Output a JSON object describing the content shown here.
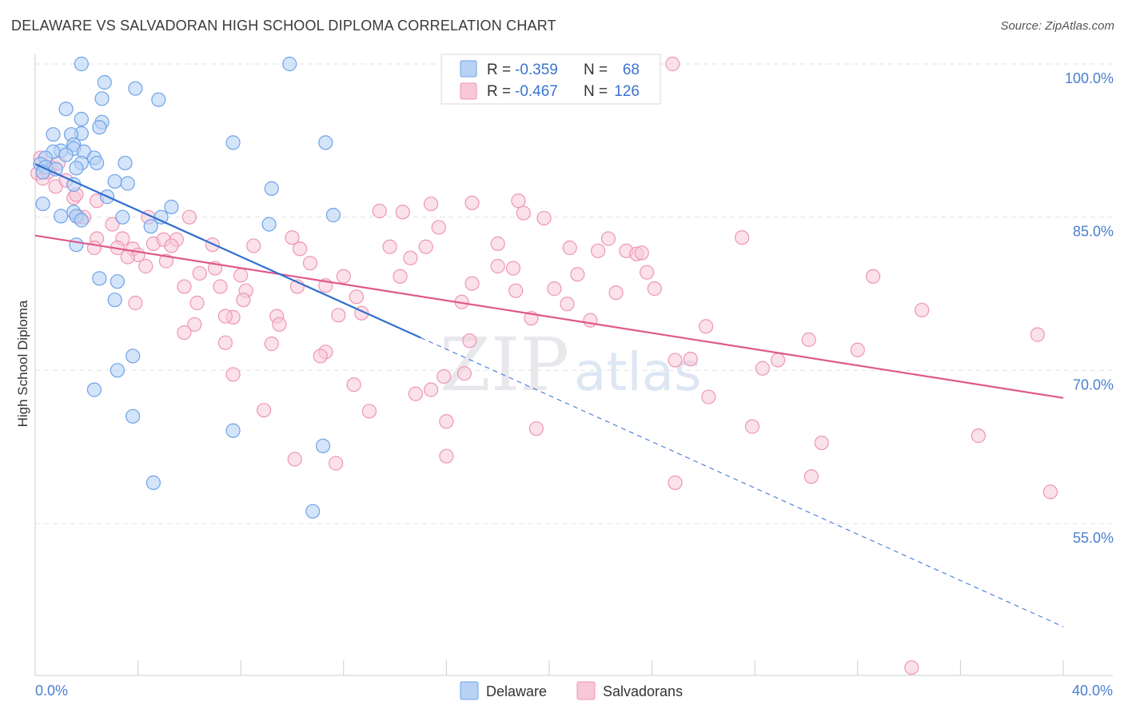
{
  "title": "DELAWARE VS SALVADORAN HIGH SCHOOL DIPLOMA CORRELATION CHART",
  "source": "Source: ZipAtlas.com",
  "watermark": {
    "zip": "ZIP",
    "atlas": "atlas"
  },
  "colors": {
    "delaware": "#6fa3e8",
    "delaware_fill": "#b8d2f5",
    "delaware_line": "#2f6fcf",
    "salvadoran": "#ee96b4",
    "salvadoran_fill": "#f8c8d8",
    "salvadoran_line": "#e0588b",
    "tick_label": "#4a7fcf",
    "grid": "#e2e2e2"
  },
  "legend": {
    "rows": [
      {
        "r_label": "R =",
        "r_value": "-0.359",
        "n_label": "N =",
        "n_value": "68"
      },
      {
        "r_label": "R =",
        "r_value": "-0.467",
        "n_label": "N =",
        "n_value": "126"
      }
    ]
  },
  "bottom_legend": [
    "Delaware",
    "Salvadorans"
  ],
  "chart_data": {
    "type": "scatter",
    "title": "DELAWARE VS SALVADORAN HIGH SCHOOL DIPLOMA CORRELATION CHART",
    "xlabel": "",
    "ylabel": "High School Diploma",
    "xlim": [
      0,
      40
    ],
    "ylim": [
      40,
      102
    ],
    "x_tick_labels": [
      "0.0%",
      "40.0%"
    ],
    "y_tick_values": [
      100,
      85,
      70,
      55
    ],
    "y_tick_labels": [
      "100.0%",
      "85.0%",
      "70.0%",
      "55.0%"
    ],
    "grid": true,
    "series": [
      {
        "name": "Delaware",
        "r": -0.359,
        "n": 68,
        "trend": {
          "x": [
            0,
            15
          ],
          "y": [
            90.2,
            73.2
          ],
          "dashed_extension_x": [
            15,
            40
          ],
          "dashed_extension_y": [
            73.2,
            44.9
          ]
        },
        "points": [
          [
            1.8,
            100
          ],
          [
            9.9,
            100
          ],
          [
            2.7,
            98.2
          ],
          [
            3.9,
            97.6
          ],
          [
            4.8,
            96.5
          ],
          [
            2.6,
            96.6
          ],
          [
            1.2,
            95.6
          ],
          [
            1.8,
            94.6
          ],
          [
            2.6,
            94.3
          ],
          [
            2.5,
            93.8
          ],
          [
            1.8,
            93.2
          ],
          [
            1.4,
            93.1
          ],
          [
            0.7,
            93.1
          ],
          [
            7.7,
            92.3
          ],
          [
            11.3,
            92.3
          ],
          [
            1.5,
            92.1
          ],
          [
            1.5,
            91.7
          ],
          [
            1.0,
            91.5
          ],
          [
            1.9,
            91.4
          ],
          [
            0.7,
            91.4
          ],
          [
            1.2,
            91.1
          ],
          [
            0.4,
            90.8
          ],
          [
            2.3,
            90.8
          ],
          [
            1.8,
            90.3
          ],
          [
            3.5,
            90.3
          ],
          [
            0.2,
            90.2
          ],
          [
            0.4,
            89.9
          ],
          [
            0.8,
            89.7
          ],
          [
            1.6,
            89.8
          ],
          [
            2.4,
            90.3
          ],
          [
            0.3,
            89.4
          ],
          [
            3.1,
            88.5
          ],
          [
            3.6,
            88.3
          ],
          [
            1.5,
            88.2
          ],
          [
            9.2,
            87.8
          ],
          [
            2.8,
            87.0
          ],
          [
            0.3,
            86.3
          ],
          [
            1.5,
            85.5
          ],
          [
            1.6,
            85.1
          ],
          [
            1.0,
            85.1
          ],
          [
            5.3,
            86.0
          ],
          [
            3.4,
            85.0
          ],
          [
            4.9,
            85.0
          ],
          [
            11.6,
            85.2
          ],
          [
            1.8,
            84.7
          ],
          [
            4.5,
            84.1
          ],
          [
            9.1,
            84.3
          ],
          [
            1.6,
            82.3
          ],
          [
            2.5,
            79.0
          ],
          [
            3.2,
            78.7
          ],
          [
            3.1,
            76.9
          ],
          [
            3.8,
            71.4
          ],
          [
            3.2,
            70.0
          ],
          [
            2.3,
            68.1
          ],
          [
            3.8,
            65.5
          ],
          [
            7.7,
            64.1
          ],
          [
            11.2,
            62.6
          ],
          [
            4.6,
            59.0
          ],
          [
            10.8,
            56.2
          ]
        ]
      },
      {
        "name": "Salvadorans",
        "r": -0.467,
        "n": 126,
        "trend": {
          "x": [
            0,
            40
          ],
          "y": [
            83.2,
            67.3
          ]
        },
        "points": [
          [
            24.8,
            100
          ],
          [
            0.2,
            90.8
          ],
          [
            0.6,
            89.9
          ],
          [
            0.1,
            89.3
          ],
          [
            0.8,
            88.0
          ],
          [
            1.5,
            86.9
          ],
          [
            1.6,
            87.2
          ],
          [
            2.4,
            86.6
          ],
          [
            1.7,
            85.0
          ],
          [
            1.9,
            85.0
          ],
          [
            4.4,
            85.0
          ],
          [
            6.0,
            85.0
          ],
          [
            14.3,
            85.5
          ],
          [
            13.4,
            85.6
          ],
          [
            15.4,
            86.3
          ],
          [
            18.8,
            86.6
          ],
          [
            17.0,
            86.4
          ],
          [
            19.0,
            85.4
          ],
          [
            19.8,
            84.9
          ],
          [
            15.7,
            84.0
          ],
          [
            3.0,
            84.3
          ],
          [
            2.4,
            82.9
          ],
          [
            3.4,
            82.9
          ],
          [
            4.6,
            82.4
          ],
          [
            5.0,
            82.8
          ],
          [
            5.5,
            82.8
          ],
          [
            6.9,
            82.3
          ],
          [
            5.3,
            82.2
          ],
          [
            3.2,
            82.0
          ],
          [
            2.3,
            82.0
          ],
          [
            3.8,
            81.9
          ],
          [
            4.0,
            81.3
          ],
          [
            3.6,
            81.1
          ],
          [
            8.5,
            82.2
          ],
          [
            10.3,
            81.9
          ],
          [
            10.0,
            83.0
          ],
          [
            13.8,
            82.1
          ],
          [
            14.6,
            81.0
          ],
          [
            15.2,
            82.1
          ],
          [
            18.0,
            82.4
          ],
          [
            20.8,
            82.0
          ],
          [
            21.9,
            81.7
          ],
          [
            22.3,
            82.9
          ],
          [
            23.0,
            81.7
          ],
          [
            23.4,
            81.4
          ],
          [
            23.6,
            81.5
          ],
          [
            27.5,
            83.0
          ],
          [
            5.1,
            80.7
          ],
          [
            4.3,
            80.2
          ],
          [
            6.4,
            79.5
          ],
          [
            7.0,
            80.0
          ],
          [
            8.0,
            79.3
          ],
          [
            10.7,
            80.5
          ],
          [
            12.0,
            79.2
          ],
          [
            14.2,
            79.2
          ],
          [
            18.0,
            80.2
          ],
          [
            18.6,
            80.0
          ],
          [
            21.1,
            79.4
          ],
          [
            23.8,
            79.6
          ],
          [
            32.6,
            79.2
          ],
          [
            5.8,
            78.2
          ],
          [
            7.2,
            78.2
          ],
          [
            8.2,
            77.8
          ],
          [
            10.2,
            78.2
          ],
          [
            11.3,
            78.3
          ],
          [
            17.0,
            78.5
          ],
          [
            18.7,
            77.8
          ],
          [
            20.2,
            78.0
          ],
          [
            22.6,
            77.6
          ],
          [
            24.1,
            78.0
          ],
          [
            3.9,
            76.6
          ],
          [
            6.3,
            76.6
          ],
          [
            8.1,
            76.9
          ],
          [
            12.5,
            77.2
          ],
          [
            16.6,
            76.7
          ],
          [
            19.3,
            75.1
          ],
          [
            20.7,
            76.5
          ],
          [
            21.6,
            74.9
          ],
          [
            34.5,
            75.9
          ],
          [
            6.2,
            74.5
          ],
          [
            7.7,
            75.2
          ],
          [
            7.4,
            75.3
          ],
          [
            9.4,
            75.3
          ],
          [
            9.5,
            74.5
          ],
          [
            11.8,
            75.4
          ],
          [
            12.7,
            75.6
          ],
          [
            26.1,
            74.3
          ],
          [
            5.8,
            73.7
          ],
          [
            7.4,
            72.7
          ],
          [
            9.2,
            72.6
          ],
          [
            11.3,
            71.8
          ],
          [
            11.1,
            71.4
          ],
          [
            16.9,
            72.9
          ],
          [
            24.9,
            71.0
          ],
          [
            25.5,
            71.1
          ],
          [
            28.9,
            71.0
          ],
          [
            28.3,
            70.2
          ],
          [
            30.1,
            73.0
          ],
          [
            32.0,
            72.0
          ],
          [
            39.0,
            73.5
          ],
          [
            7.7,
            69.6
          ],
          [
            12.4,
            68.6
          ],
          [
            14.8,
            67.7
          ],
          [
            15.4,
            68.1
          ],
          [
            15.9,
            69.4
          ],
          [
            16.7,
            69.7
          ],
          [
            26.2,
            67.4
          ],
          [
            8.9,
            66.1
          ],
          [
            13.0,
            66.0
          ],
          [
            16.0,
            65.0
          ],
          [
            19.5,
            64.3
          ],
          [
            27.9,
            64.5
          ],
          [
            30.6,
            62.9
          ],
          [
            36.7,
            63.6
          ],
          [
            10.1,
            61.3
          ],
          [
            11.7,
            60.9
          ],
          [
            16.0,
            61.6
          ],
          [
            24.9,
            59.0
          ],
          [
            30.2,
            59.6
          ],
          [
            39.5,
            58.1
          ],
          [
            34.1,
            40.9
          ],
          [
            0.3,
            88.8
          ],
          [
            0.5,
            89.4
          ],
          [
            1.2,
            88.6
          ],
          [
            0.9,
            90.3
          ]
        ]
      }
    ]
  }
}
